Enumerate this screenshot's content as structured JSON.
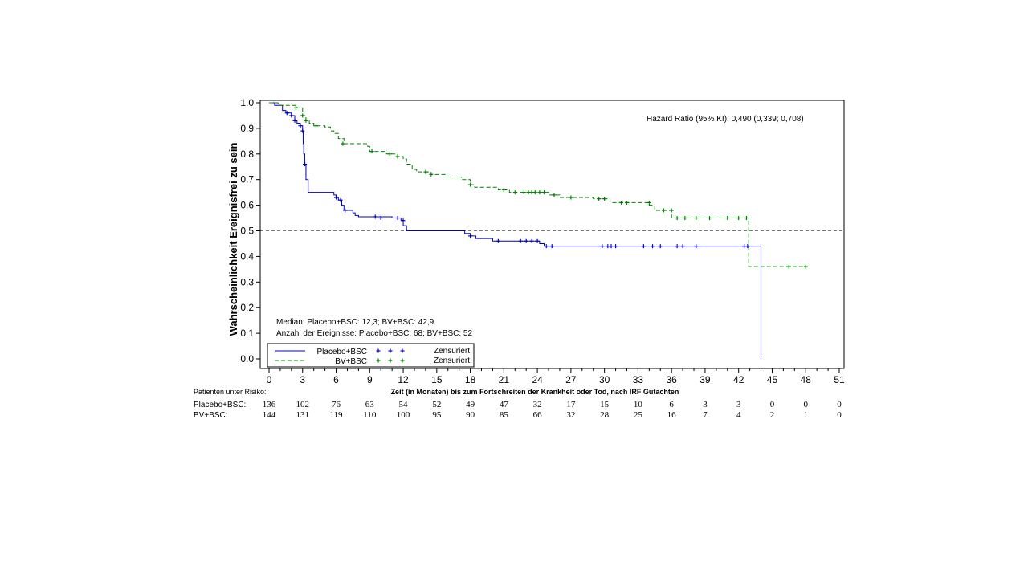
{
  "chart_data": {
    "type": "line",
    "subtype": "kaplan-meier",
    "ylabel": "Wahrscheinlichkeit Ereignisfrei zu sein",
    "xlabel": "Zeit (in Monaten) bis zum Fortschreiten der Krankheit oder Tod, nach IRF Gutachten",
    "xlim": [
      0,
      51
    ],
    "ylim": [
      0,
      1
    ],
    "x_ticks": [
      0,
      3,
      6,
      9,
      12,
      15,
      18,
      21,
      24,
      27,
      30,
      33,
      36,
      39,
      42,
      45,
      48,
      51
    ],
    "x_tick_labels": [
      "0",
      "3",
      "6",
      "9",
      "12",
      "15",
      "18",
      "21",
      "24",
      "27",
      "30",
      "33",
      "36",
      "39",
      "42",
      "45",
      "48",
      "51"
    ],
    "y_ticks": [
      0,
      0.1,
      0.2,
      0.3,
      0.4,
      0.5,
      0.6,
      0.7,
      0.8,
      0.9,
      1.0
    ],
    "y_tick_labels": [
      "0.0",
      "0.1",
      "0.2",
      "0.3",
      "0.4",
      "0.5",
      "0.6",
      "0.7",
      "0.8",
      "0.9",
      "1.0"
    ],
    "reference_line": {
      "y": 0.5,
      "style": "dashed"
    },
    "hazard_ratio_text": "Hazard Ratio (95% KI): 0,490 (0,339; 0,708)",
    "median_text": "Median: Placebo+BSC: 12,3; BV+BSC: 42,9",
    "events_text": "Anzahl der Ereignisse: Placebo+BSC: 68; BV+BSC: 52",
    "legend_censored_label": "Zensuriert",
    "series": [
      {
        "name": "Placebo+BSC",
        "color": "#0000cc",
        "dash": "solid",
        "steps": [
          [
            0,
            1.0
          ],
          [
            0.5,
            0.99
          ],
          [
            1.2,
            0.97
          ],
          [
            1.5,
            0.96
          ],
          [
            2.0,
            0.95
          ],
          [
            2.3,
            0.93
          ],
          [
            2.5,
            0.92
          ],
          [
            2.8,
            0.91
          ],
          [
            3.0,
            0.89
          ],
          [
            3.05,
            0.84
          ],
          [
            3.1,
            0.8
          ],
          [
            3.2,
            0.76
          ],
          [
            3.3,
            0.7
          ],
          [
            3.5,
            0.65
          ],
          [
            5.8,
            0.64
          ],
          [
            6.0,
            0.63
          ],
          [
            6.2,
            0.62
          ],
          [
            6.5,
            0.6
          ],
          [
            6.7,
            0.58
          ],
          [
            7.5,
            0.57
          ],
          [
            7.7,
            0.56
          ],
          [
            8.0,
            0.555
          ],
          [
            11.0,
            0.55
          ],
          [
            11.8,
            0.54
          ],
          [
            12.0,
            0.52
          ],
          [
            12.3,
            0.5
          ],
          [
            17.5,
            0.49
          ],
          [
            18.0,
            0.48
          ],
          [
            18.5,
            0.47
          ],
          [
            20.0,
            0.46
          ],
          [
            23.5,
            0.46
          ],
          [
            24.2,
            0.45
          ],
          [
            24.6,
            0.44
          ],
          [
            44.0,
            0.44
          ],
          [
            44.0,
            0.0
          ]
        ],
        "end_x": 44.0,
        "censored": [
          [
            1.6,
            0.96
          ],
          [
            2.0,
            0.95
          ],
          [
            2.3,
            0.93
          ],
          [
            2.8,
            0.91
          ],
          [
            3.0,
            0.89
          ],
          [
            3.2,
            0.76
          ],
          [
            6.0,
            0.63
          ],
          [
            6.4,
            0.62
          ],
          [
            6.8,
            0.58
          ],
          [
            9.5,
            0.555
          ],
          [
            10.0,
            0.55
          ],
          [
            11.5,
            0.55
          ],
          [
            12.0,
            0.54
          ],
          [
            18.0,
            0.48
          ],
          [
            20.5,
            0.46
          ],
          [
            22.5,
            0.46
          ],
          [
            23.0,
            0.46
          ],
          [
            23.5,
            0.46
          ],
          [
            24.0,
            0.46
          ],
          [
            24.8,
            0.44
          ],
          [
            25.3,
            0.44
          ],
          [
            29.8,
            0.44
          ],
          [
            30.3,
            0.44
          ],
          [
            30.6,
            0.44
          ],
          [
            31.0,
            0.44
          ],
          [
            33.5,
            0.44
          ],
          [
            34.3,
            0.44
          ],
          [
            35.0,
            0.44
          ],
          [
            36.5,
            0.44
          ],
          [
            37.0,
            0.44
          ],
          [
            38.2,
            0.44
          ],
          [
            42.5,
            0.44
          ],
          [
            42.8,
            0.44
          ]
        ]
      },
      {
        "name": "BV+BSC",
        "color": "#008000",
        "dash": "dashed",
        "steps": [
          [
            0,
            1.0
          ],
          [
            0.8,
            0.99
          ],
          [
            2.5,
            0.98
          ],
          [
            3.0,
            0.95
          ],
          [
            3.3,
            0.93
          ],
          [
            3.6,
            0.92
          ],
          [
            4.0,
            0.91
          ],
          [
            5.0,
            0.905
          ],
          [
            5.5,
            0.89
          ],
          [
            5.8,
            0.88
          ],
          [
            6.2,
            0.86
          ],
          [
            6.7,
            0.84
          ],
          [
            8.8,
            0.83
          ],
          [
            9.0,
            0.81
          ],
          [
            10.5,
            0.8
          ],
          [
            11.5,
            0.79
          ],
          [
            12.0,
            0.78
          ],
          [
            12.3,
            0.76
          ],
          [
            12.8,
            0.74
          ],
          [
            13.2,
            0.73
          ],
          [
            14.5,
            0.72
          ],
          [
            15.8,
            0.71
          ],
          [
            17.2,
            0.7
          ],
          [
            18.0,
            0.68
          ],
          [
            18.4,
            0.67
          ],
          [
            20.5,
            0.66
          ],
          [
            21.5,
            0.65
          ],
          [
            25.0,
            0.64
          ],
          [
            26.0,
            0.63
          ],
          [
            29.0,
            0.625
          ],
          [
            30.5,
            0.61
          ],
          [
            34.0,
            0.6
          ],
          [
            34.5,
            0.58
          ],
          [
            36.0,
            0.55
          ],
          [
            42.8,
            0.55
          ],
          [
            42.9,
            0.36
          ],
          [
            48.0,
            0.36
          ]
        ],
        "end_x": 48.0,
        "censored": [
          [
            2.4,
            0.98
          ],
          [
            3.0,
            0.95
          ],
          [
            3.3,
            0.93
          ],
          [
            4.2,
            0.91
          ],
          [
            6.6,
            0.84
          ],
          [
            9.2,
            0.81
          ],
          [
            10.8,
            0.8
          ],
          [
            11.5,
            0.79
          ],
          [
            14.0,
            0.73
          ],
          [
            14.5,
            0.72
          ],
          [
            18.0,
            0.68
          ],
          [
            21.0,
            0.66
          ],
          [
            22.0,
            0.65
          ],
          [
            22.8,
            0.65
          ],
          [
            23.2,
            0.65
          ],
          [
            23.5,
            0.65
          ],
          [
            23.8,
            0.65
          ],
          [
            24.2,
            0.65
          ],
          [
            24.6,
            0.65
          ],
          [
            25.5,
            0.64
          ],
          [
            27.0,
            0.63
          ],
          [
            29.5,
            0.625
          ],
          [
            30.0,
            0.625
          ],
          [
            31.5,
            0.61
          ],
          [
            32.0,
            0.61
          ],
          [
            34.0,
            0.61
          ],
          [
            35.3,
            0.58
          ],
          [
            36.0,
            0.58
          ],
          [
            36.5,
            0.55
          ],
          [
            37.2,
            0.55
          ],
          [
            38.2,
            0.55
          ],
          [
            39.4,
            0.55
          ],
          [
            41.0,
            0.55
          ],
          [
            42.0,
            0.55
          ],
          [
            42.7,
            0.55
          ],
          [
            46.5,
            0.36
          ],
          [
            48.0,
            0.36
          ]
        ]
      }
    ],
    "at_risk": {
      "label": "Patienten unter Risiko:",
      "rows": [
        {
          "name": "Placebo+BSC:",
          "values": [
            "136",
            "102",
            "76",
            "63",
            "54",
            "52",
            "49",
            "47",
            "32",
            "17",
            "15",
            "10",
            "6",
            "3",
            "3",
            "0",
            "0",
            "0"
          ]
        },
        {
          "name": "BV+BSC:",
          "values": [
            "144",
            "131",
            "119",
            "110",
            "100",
            "95",
            "90",
            "85",
            "66",
            "32",
            "28",
            "25",
            "16",
            "7",
            "4",
            "2",
            "1",
            "0"
          ]
        }
      ]
    }
  }
}
